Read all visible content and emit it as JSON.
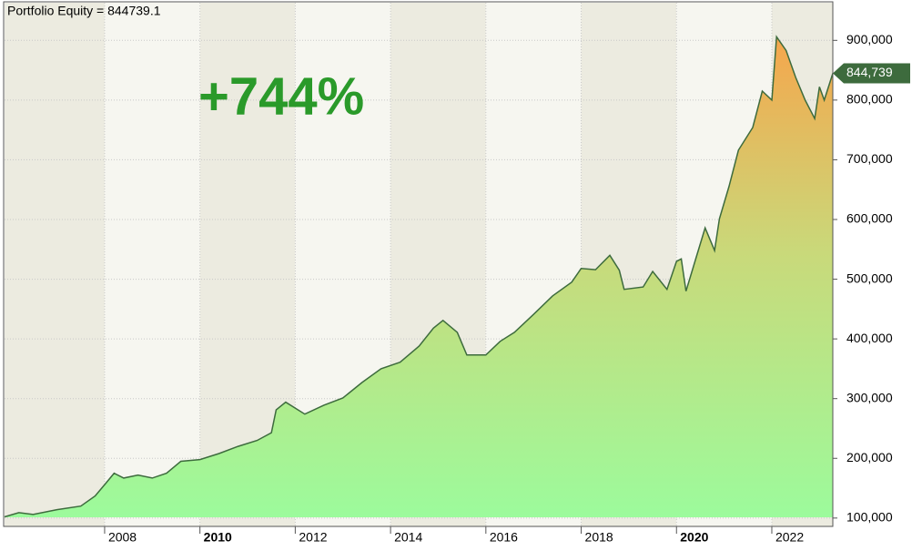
{
  "chart_data": {
    "type": "area",
    "title": "Portfolio Equity = 844739.1",
    "annotation": "+744%",
    "x": [
      2005.9,
      2006.2,
      2006.5,
      2007.0,
      2007.5,
      2007.8,
      2008.0,
      2008.2,
      2008.4,
      2008.7,
      2009.0,
      2009.3,
      2009.6,
      2010.0,
      2010.4,
      2010.8,
      2011.2,
      2011.5,
      2011.6,
      2011.8,
      2012.2,
      2012.6,
      2013.0,
      2013.4,
      2013.8,
      2014.2,
      2014.6,
      2014.9,
      2015.1,
      2015.4,
      2015.6,
      2016.0,
      2016.3,
      2016.6,
      2017.0,
      2017.4,
      2017.8,
      2018.0,
      2018.3,
      2018.6,
      2018.8,
      2018.9,
      2019.3,
      2019.5,
      2019.8,
      2020.0,
      2020.1,
      2020.2,
      2020.4,
      2020.6,
      2020.8,
      2020.9,
      2021.1,
      2021.3,
      2021.6,
      2021.8,
      2022.0,
      2022.1,
      2022.3,
      2022.5,
      2022.7,
      2022.9,
      2023.0,
      2023.1,
      2023.28
    ],
    "series": [
      {
        "name": "Portfolio Equity",
        "color": "#3d6b3d",
        "values": [
          102000,
          109000,
          106000,
          114000,
          120000,
          137000,
          156000,
          175000,
          167000,
          172000,
          167000,
          175000,
          195000,
          198000,
          208000,
          220000,
          230000,
          243000,
          281000,
          294000,
          274000,
          289000,
          301000,
          327000,
          350000,
          361000,
          388000,
          418000,
          431000,
          411000,
          373000,
          373000,
          396000,
          411000,
          441000,
          472000,
          495000,
          518000,
          516000,
          540000,
          515000,
          483000,
          487000,
          513000,
          483000,
          530000,
          534000,
          480000,
          533000,
          586000,
          548000,
          601000,
          655000,
          716000,
          754000,
          815000,
          800000,
          906000,
          883000,
          838000,
          800000,
          769000,
          822000,
          800000,
          844739
        ]
      }
    ],
    "last_label": {
      "value": 844739,
      "label": "844,739"
    },
    "xlim": [
      2005.9,
      2023.28
    ],
    "xticks": [
      2008,
      2010,
      2012,
      2014,
      2016,
      2018,
      2020,
      2022
    ],
    "bold_xticks": [
      2010,
      2020
    ],
    "ylim": [
      86000,
      963000
    ],
    "yticks": [
      {
        "value": 100000,
        "label": "100,000"
      },
      {
        "value": 200000,
        "label": "200,000"
      },
      {
        "value": 300000,
        "label": "300,000"
      },
      {
        "value": 400000,
        "label": "400,000"
      },
      {
        "value": 500000,
        "label": "500,000"
      },
      {
        "value": 600000,
        "label": "600,000"
      },
      {
        "value": 700000,
        "label": "700,000"
      },
      {
        "value": 800000,
        "label": "800,000"
      },
      {
        "value": 900000,
        "label": "900,000"
      }
    ],
    "grid": true
  }
}
